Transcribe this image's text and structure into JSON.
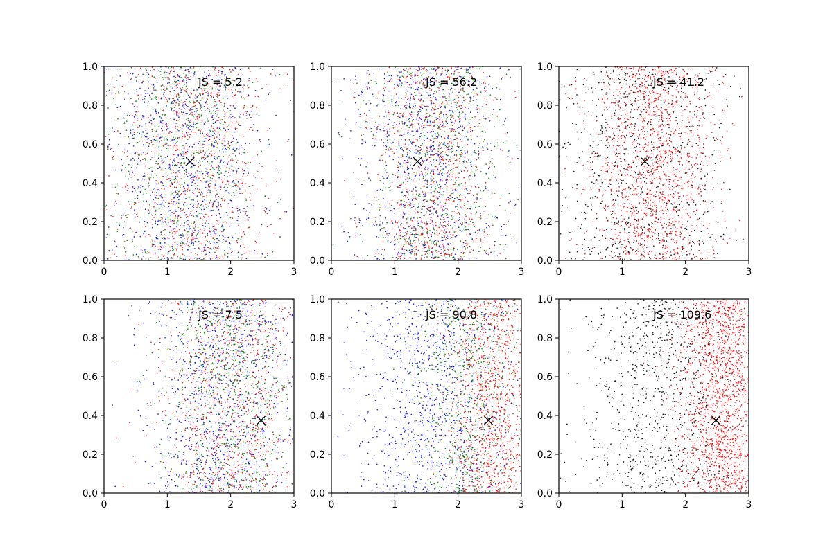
{
  "chart_data": {
    "type": "scatter",
    "layout": {
      "rows": 2,
      "cols": 3
    },
    "xlim": [
      0,
      3
    ],
    "ylim": [
      0,
      1
    ],
    "x_ticks": [
      "0",
      "1",
      "2",
      "3"
    ],
    "y_ticks": [
      "0.0",
      "0.2",
      "0.4",
      "0.6",
      "0.8",
      "1.0"
    ],
    "grid": false,
    "colors": {
      "blue": "#0000ff",
      "green": "#008000",
      "red": "#ff0000",
      "black": "#000000"
    },
    "panels": [
      {
        "annotation": "JS = 5.2",
        "marker": {
          "x": 1.36,
          "y": 0.51,
          "symbol": "x"
        },
        "series": [
          {
            "color": "#0000ff",
            "x_center": 1.3,
            "x_spread": 0.6,
            "count": 900
          },
          {
            "color": "#008000",
            "x_center": 1.3,
            "x_spread": 0.6,
            "count": 700
          },
          {
            "color": "#ff0000",
            "x_center": 1.4,
            "x_spread": 0.6,
            "count": 800
          }
        ]
      },
      {
        "annotation": "JS = 56.2",
        "marker": {
          "x": 1.36,
          "y": 0.51,
          "symbol": "x"
        },
        "series": [
          {
            "color": "#0000ff",
            "x_center": 1.5,
            "x_spread": 0.6,
            "count": 900
          },
          {
            "color": "#008000",
            "x_center": 1.7,
            "x_spread": 0.55,
            "count": 700
          },
          {
            "color": "#ff0000",
            "x_center": 1.6,
            "x_spread": 0.5,
            "count": 800
          }
        ]
      },
      {
        "annotation": "JS = 41.2",
        "marker": {
          "x": 1.36,
          "y": 0.51,
          "symbol": "x"
        },
        "series": [
          {
            "color": "#000000",
            "x_center": 1.3,
            "x_spread": 0.65,
            "count": 900
          },
          {
            "color": "#ff0000",
            "x_center": 1.5,
            "x_spread": 0.5,
            "count": 1300
          }
        ]
      },
      {
        "annotation": "JS = 7.5",
        "marker": {
          "x": 2.48,
          "y": 0.375,
          "symbol": "x"
        },
        "series": [
          {
            "color": "#0000ff",
            "x_center": 1.85,
            "x_spread": 0.6,
            "count": 900
          },
          {
            "color": "#008000",
            "x_center": 2.0,
            "x_spread": 0.5,
            "count": 700
          },
          {
            "color": "#ff0000",
            "x_center": 2.0,
            "x_spread": 0.55,
            "count": 800
          }
        ]
      },
      {
        "annotation": "JS = 90.8",
        "marker": {
          "x": 2.48,
          "y": 0.375,
          "symbol": "x"
        },
        "series": [
          {
            "color": "#0000ff",
            "x_center": 1.6,
            "x_spread": 0.65,
            "count": 900
          },
          {
            "color": "#008000",
            "x_center": 2.15,
            "x_spread": 0.45,
            "count": 700
          },
          {
            "color": "#ff0000",
            "x_center": 2.55,
            "x_spread": 0.35,
            "count": 1000
          }
        ]
      },
      {
        "annotation": "JS = 109.6",
        "marker": {
          "x": 2.48,
          "y": 0.375,
          "symbol": "x"
        },
        "series": [
          {
            "color": "#000000",
            "x_center": 1.55,
            "x_spread": 0.6,
            "count": 900
          },
          {
            "color": "#ff0000",
            "x_center": 2.55,
            "x_spread": 0.33,
            "count": 1500
          }
        ]
      }
    ]
  }
}
